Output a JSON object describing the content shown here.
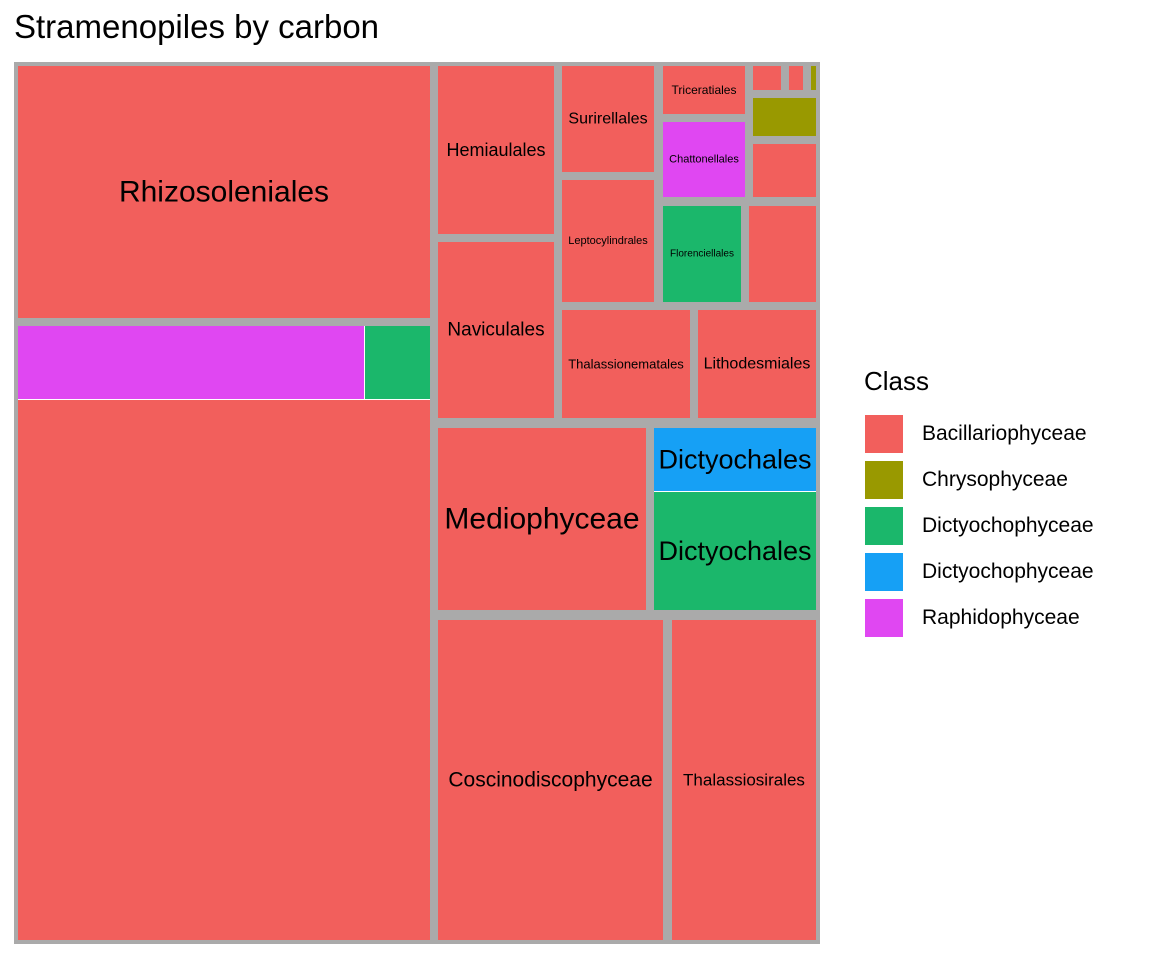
{
  "chart_data": {
    "type": "treemap",
    "title": "Stramenopiles by carbon",
    "legend": {
      "title": "Class",
      "position": "right",
      "entries": [
        {
          "label": "Bacillariophyceae",
          "color": "#F25F5C"
        },
        {
          "label": "Chrysophyceae",
          "color": "#999900"
        },
        {
          "label": "Dictyochophyceae",
          "color": "#1BB76B"
        },
        {
          "label": "Dictyochophyceae",
          "color": "#16A0F5"
        },
        {
          "label": "Raphidophyceae",
          "color": "#E047F2"
        }
      ]
    },
    "tiles": [
      {
        "label": "Rhizosoleniales",
        "class": "Bacillariophyceae",
        "value": 13.1
      },
      {
        "label": "",
        "class": "Bacillariophyceae",
        "value": 46.2
      },
      {
        "label": "",
        "class": "Raphidophyceae",
        "value": 3.5
      },
      {
        "label": "",
        "class": "Dictyochophyceae",
        "value": 0.7
      },
      {
        "label": "Hemiaulales",
        "class": "Bacillariophyceae",
        "value": 2.6
      },
      {
        "label": "Naviculales",
        "class": "Bacillariophyceae",
        "value": 2.6
      },
      {
        "label": "Surirellales",
        "class": "Bacillariophyceae",
        "value": 1.4
      },
      {
        "label": "Leptocylindrales",
        "class": "Bacillariophyceae",
        "value": 1.4
      },
      {
        "label": "Triceratiales",
        "class": "Bacillariophyceae",
        "value": 0.5
      },
      {
        "label": "Chattonellales",
        "class": "Raphidophyceae",
        "value": 0.8
      },
      {
        "label": "Florenciellales",
        "class": "Dictyochophyceae",
        "value": 1.0
      },
      {
        "label": "",
        "class": "Bacillariophyceae",
        "value": 0.9
      },
      {
        "label": "",
        "class": "Bacillariophyceae",
        "value": 0.4
      },
      {
        "label": "",
        "class": "Chrysophyceae",
        "value": 0.3
      },
      {
        "label": "",
        "class": "Bacillariophyceae",
        "value": 0.1
      },
      {
        "label": "",
        "class": "Bacillariophyceae",
        "value": 0.1
      },
      {
        "label": "",
        "class": "Chrysophyceae",
        "value": 0.05
      },
      {
        "label": "Thalassionematales",
        "class": "Bacillariophyceae",
        "value": 1.8
      },
      {
        "label": "Lithodesmiales",
        "class": "Bacillariophyceae",
        "value": 1.5
      },
      {
        "label": "Mediophyceae",
        "class": "Bacillariophyceae",
        "value": 4.6
      },
      {
        "label": "Dictyochales",
        "class": "Dictyochophyceae",
        "value": 2.5
      },
      {
        "label": "Dictyochales",
        "class": "Dictyochophyceae",
        "value": 1.4
      },
      {
        "label": "Coscinodiscophyceae",
        "class": "Bacillariophyceae",
        "value": 9.5
      },
      {
        "label": "Thalassiosirales",
        "class": "Bacillariophyceae",
        "value": 6.3
      }
    ]
  }
}
